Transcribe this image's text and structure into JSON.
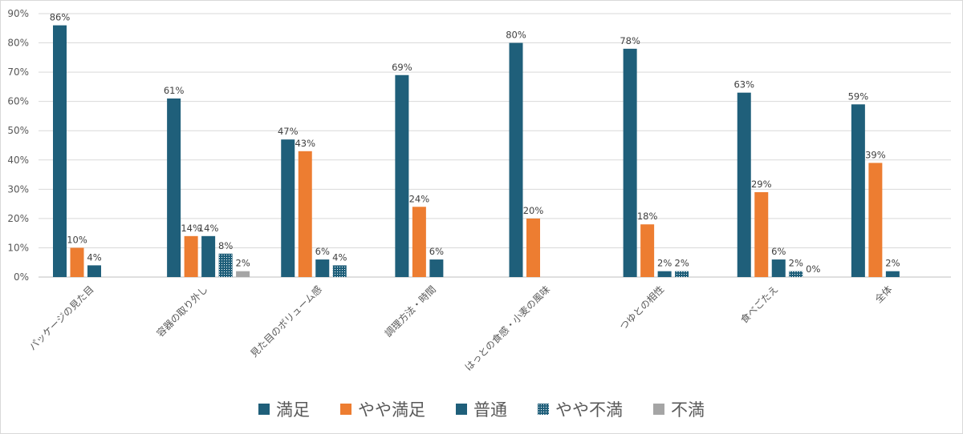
{
  "chart_data": {
    "type": "bar",
    "categories": [
      "パッケージの見た目",
      "容器の取り外し",
      "見た目のボリューム感",
      "調理方法・時間",
      "はっとの食感・小麦の風味",
      "つゆとの相性",
      "食べごたえ",
      "全体"
    ],
    "series": [
      {
        "name": "満足",
        "values": [
          86,
          61,
          47,
          69,
          80,
          78,
          63,
          59
        ],
        "labels": [
          "86%",
          "61%",
          "47%",
          "69%",
          "80%",
          "78%",
          "63%",
          "59%"
        ],
        "color": "#1f5f7a",
        "pattern": "solid"
      },
      {
        "name": "やや満足",
        "values": [
          10,
          14,
          43,
          24,
          20,
          18,
          29,
          39
        ],
        "labels": [
          "10%",
          "14%",
          "43%",
          "24%",
          "20%",
          "18%",
          "29%",
          "39%"
        ],
        "color": "#ed7d31",
        "pattern": "solid"
      },
      {
        "name": "普通",
        "values": [
          4,
          14,
          6,
          6,
          null,
          2,
          6,
          2
        ],
        "labels": [
          "4%",
          "14%",
          "6%",
          "6%",
          "",
          "2%",
          "6%",
          "2%"
        ],
        "color": "#1f5f7a",
        "pattern": "solid"
      },
      {
        "name": "やや不満",
        "values": [
          null,
          8,
          4,
          null,
          null,
          2,
          2,
          null
        ],
        "labels": [
          "",
          "8%",
          "4%",
          "",
          "",
          "2%",
          "2%",
          ""
        ],
        "color": "#1f5f7a",
        "pattern": "dotted"
      },
      {
        "name": "不満",
        "values": [
          null,
          2,
          null,
          null,
          null,
          null,
          0,
          null
        ],
        "labels": [
          "",
          "2%",
          "",
          "",
          "",
          "",
          "0%",
          ""
        ],
        "color": "#a5a5a5",
        "pattern": "solid"
      }
    ],
    "ylim": [
      0,
      90
    ],
    "yticks": [
      "0%",
      "10%",
      "20%",
      "30%",
      "40%",
      "50%",
      "60%",
      "70%",
      "80%",
      "90%"
    ],
    "grid": true,
    "legend_position": "bottom"
  }
}
